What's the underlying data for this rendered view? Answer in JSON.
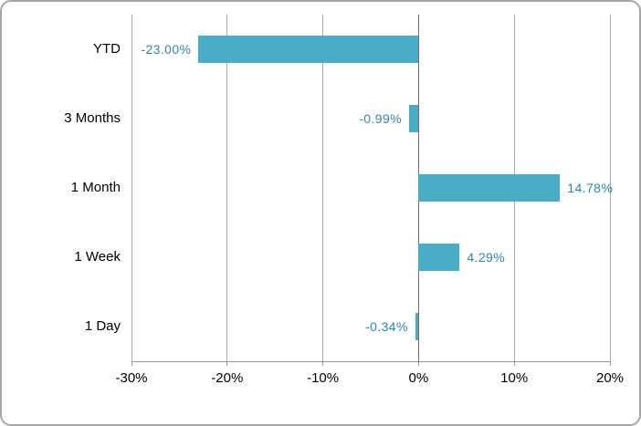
{
  "chart_data": {
    "type": "bar",
    "orientation": "horizontal",
    "title": "",
    "xlabel": "",
    "ylabel": "",
    "categories": [
      "YTD",
      "3 Months",
      "1 Month",
      "1 Week",
      "1 Day"
    ],
    "values": [
      -23.0,
      -0.99,
      14.78,
      4.29,
      -0.34
    ],
    "value_labels": [
      "-23.00%",
      "-0.99%",
      "14.78%",
      "4.29%",
      "-0.34%"
    ],
    "x_ticks": [
      -30,
      -20,
      -10,
      0,
      10,
      20
    ],
    "x_tick_labels": [
      "-30%",
      "-20%",
      "-10%",
      "0%",
      "10%",
      "20%"
    ],
    "xlim": [
      -30,
      20
    ],
    "grid": "vertical-only",
    "legend": "none",
    "colors": {
      "bar": "#4bacc6",
      "value_label": "#2e86ae",
      "axis_text": "#000000",
      "gridline": "#ababab",
      "zero_axis": "#6e6e6e",
      "baseline": "#969696",
      "card_border": "#a6a6a6",
      "background": "#ffffff"
    }
  }
}
